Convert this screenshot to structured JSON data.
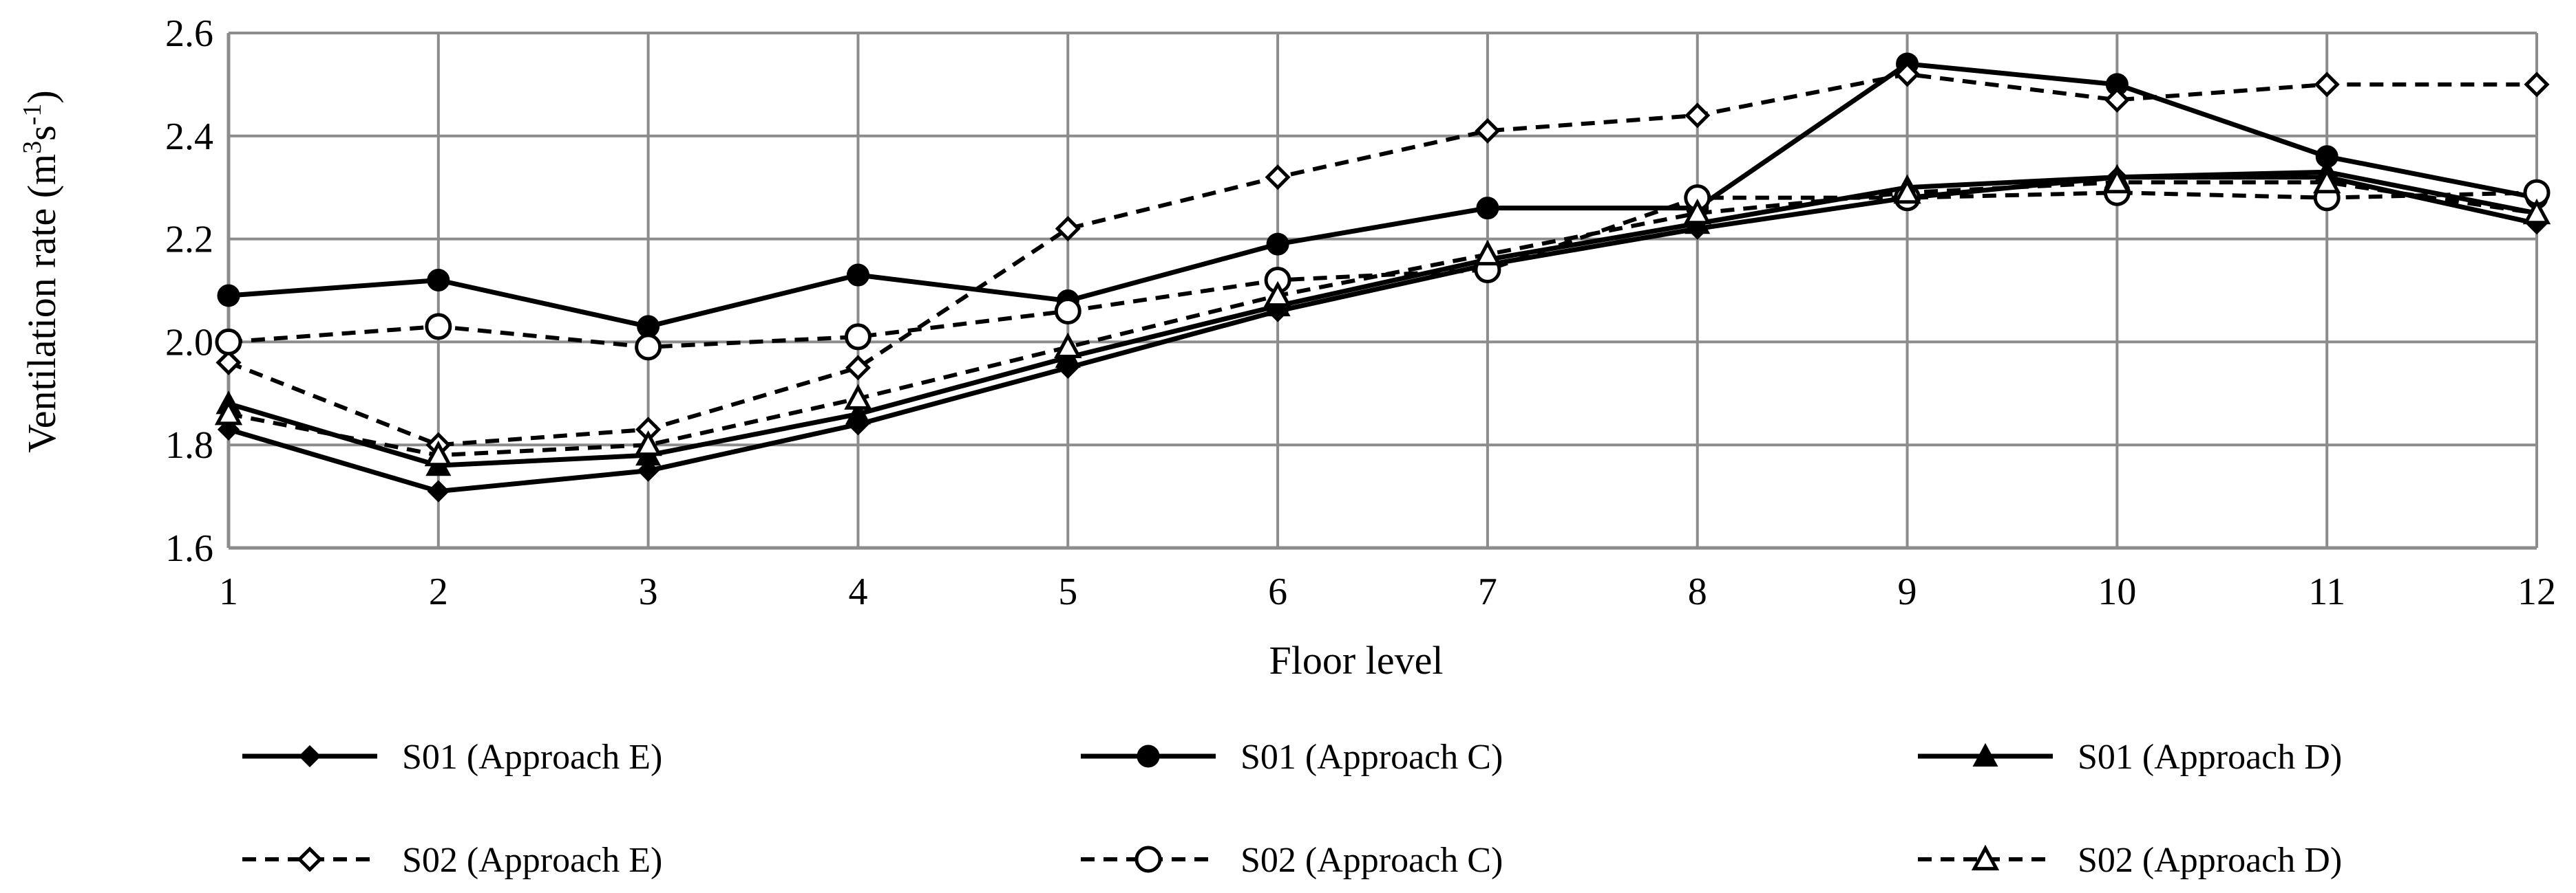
{
  "chart_data": {
    "type": "line",
    "title": "",
    "xlabel": "Floor level",
    "ylabel_main": "Ventilation rate (m",
    "ylabel_sup1": "3",
    "ylabel_mid": "s",
    "ylabel_sup2": "-1",
    "ylabel_end": ")",
    "categories": [
      "1",
      "2",
      "3",
      "4",
      "5",
      "6",
      "7",
      "8",
      "9",
      "10",
      "11",
      "12"
    ],
    "x": [
      1,
      2,
      3,
      4,
      5,
      6,
      7,
      8,
      9,
      10,
      11,
      12
    ],
    "ylim": [
      1.6,
      2.6
    ],
    "yticks": [
      "1.6",
      "1.8",
      "2.0",
      "2.2",
      "2.4",
      "2.6"
    ],
    "ytick_values": [
      1.6,
      1.8,
      2.0,
      2.2,
      2.4,
      2.6
    ],
    "grid": true,
    "legend_position": "bottom",
    "series": [
      {
        "name": "S01 (Approach E)",
        "line": "solid",
        "marker": "diamond-filled",
        "values": [
          1.83,
          1.71,
          1.75,
          1.84,
          1.95,
          2.06,
          2.15,
          2.22,
          2.28,
          2.32,
          2.32,
          2.23
        ]
      },
      {
        "name": "S01 (Approach C)",
        "line": "solid",
        "marker": "circle-filled",
        "values": [
          2.09,
          2.12,
          2.03,
          2.13,
          2.08,
          2.19,
          2.26,
          2.26,
          2.54,
          2.5,
          2.36,
          2.28
        ]
      },
      {
        "name": "S01 (Approach D)",
        "line": "solid",
        "marker": "triangle-filled",
        "values": [
          1.88,
          1.76,
          1.78,
          1.86,
          1.97,
          2.07,
          2.16,
          2.23,
          2.3,
          2.32,
          2.33,
          2.25
        ]
      },
      {
        "name": "S02 (Approach E)",
        "line": "dashed",
        "marker": "diamond-open",
        "values": [
          1.96,
          1.8,
          1.83,
          1.95,
          2.22,
          2.32,
          2.41,
          2.44,
          2.52,
          2.47,
          2.5,
          2.5
        ]
      },
      {
        "name": "S02 (Approach C)",
        "line": "dashed",
        "marker": "circle-open",
        "values": [
          2.0,
          2.03,
          1.99,
          2.01,
          2.06,
          2.12,
          2.14,
          2.28,
          2.28,
          2.29,
          2.28,
          2.29
        ]
      },
      {
        "name": "S02 (Approach D)",
        "line": "dashed",
        "marker": "triangle-open",
        "values": [
          1.86,
          1.78,
          1.8,
          1.89,
          1.99,
          2.09,
          2.17,
          2.25,
          2.29,
          2.31,
          2.31,
          2.25
        ]
      }
    ]
  }
}
